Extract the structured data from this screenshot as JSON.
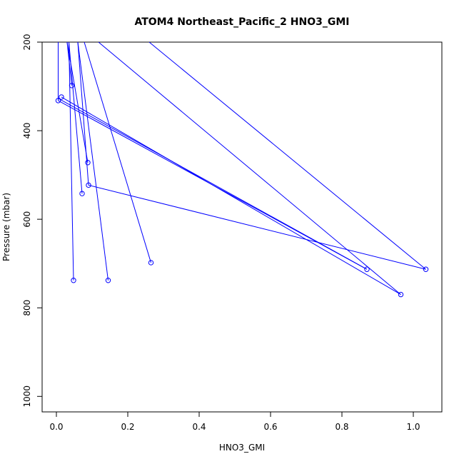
{
  "chart_data": {
    "type": "line",
    "title": "ATOM4 Northeast_Pacific_2 HNO3_GMI",
    "xlabel": "HNO3_GMI",
    "ylabel": "Pressure (mbar)",
    "xlim": [
      -0.04,
      1.08
    ],
    "ylim": [
      1035,
      200
    ],
    "y_reversed": true,
    "x_ticks": [
      0.0,
      0.2,
      0.4,
      0.6,
      0.8,
      1.0
    ],
    "x_tick_labels": [
      "0.0",
      "0.2",
      "0.4",
      "0.6",
      "0.8",
      "1.0"
    ],
    "y_ticks": [
      200,
      400,
      600,
      800,
      1000
    ],
    "y_tick_labels": [
      "200",
      "400",
      "600",
      "800",
      "1000"
    ],
    "grid": false,
    "line_color": "#0000ff",
    "series": [
      {
        "x": [
          0.005,
          0.87
        ],
        "y": [
          332,
          713
        ]
      },
      {
        "x": [
          0.014,
          0.965
        ],
        "y": [
          324,
          770
        ]
      },
      {
        "x": [
          0.043,
          1.035
        ],
        "y": [
          298,
          713
        ]
      },
      {
        "x": [
          0.048,
          0.005
        ],
        "y": [
          738,
          200
        ]
      },
      {
        "x": [
          0.072,
          0.035
        ],
        "y": [
          542,
          200
        ]
      },
      {
        "x": [
          0.088,
          0.03
        ],
        "y": [
          472,
          200
        ]
      },
      {
        "x": [
          0.09,
          0.018
        ],
        "y": [
          523,
          200
        ]
      },
      {
        "x": [
          0.145,
          0.06
        ],
        "y": [
          738,
          200
        ]
      },
      {
        "x": [
          0.265,
          0.078
        ],
        "y": [
          698,
          200
        ]
      },
      {
        "x": [
          0.08,
          0.22
        ],
        "y": [
          200,
          200
        ]
      }
    ],
    "extra_segments": [
      {
        "x": [
          0.072,
          0.035
        ],
        "y": [
          542,
          200
        ]
      },
      {
        "x": [
          0.09,
          0.005
        ],
        "y": [
          523,
          200
        ]
      },
      {
        "x": [
          0.2,
          0.118
        ],
        "y": [
          200,
          200
        ]
      }
    ],
    "long_lines": [
      {
        "x": [
          0.118,
          0.965
        ],
        "y": [
          200,
          770
        ]
      },
      {
        "x": [
          0.26,
          1.035
        ],
        "y": [
          200,
          713
        ]
      },
      {
        "x": [
          0.06,
          0.265
        ],
        "y": [
          200,
          698
        ]
      }
    ],
    "points": [
      {
        "x": 0.005,
        "y": 332
      },
      {
        "x": 0.014,
        "y": 324
      },
      {
        "x": 0.043,
        "y": 298
      },
      {
        "x": 0.048,
        "y": 738
      },
      {
        "x": 0.072,
        "y": 542
      },
      {
        "x": 0.088,
        "y": 472
      },
      {
        "x": 0.09,
        "y": 523
      },
      {
        "x": 0.145,
        "y": 738
      },
      {
        "x": 0.265,
        "y": 698
      },
      {
        "x": 0.87,
        "y": 713
      },
      {
        "x": 0.965,
        "y": 770
      },
      {
        "x": 1.035,
        "y": 713
      }
    ]
  }
}
